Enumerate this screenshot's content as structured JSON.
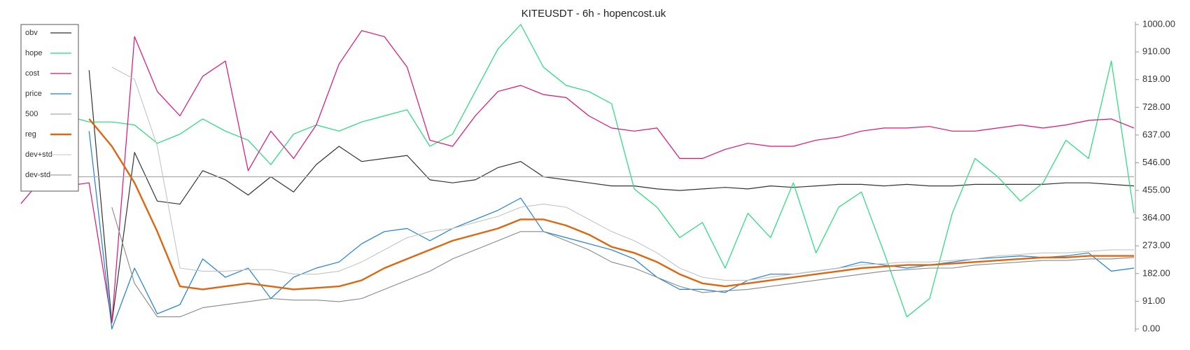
{
  "chart_data": {
    "type": "line",
    "title": "KITEUSDT - 6h - hopencost.uk",
    "ylim": [
      0,
      1000
    ],
    "yticks": [
      {
        "value": 0,
        "label": "0.00"
      },
      {
        "value": 91,
        "label": "91.00"
      },
      {
        "value": 182,
        "label": "182.00"
      },
      {
        "value": 273,
        "label": "273.00"
      },
      {
        "value": 364,
        "label": "364.00"
      },
      {
        "value": 455,
        "label": "455.00"
      },
      {
        "value": 546,
        "label": "546.00"
      },
      {
        "value": 637,
        "label": "637.00"
      },
      {
        "value": 728,
        "label": "728.00"
      },
      {
        "value": 819,
        "label": "819.00"
      },
      {
        "value": 910,
        "label": "910.00"
      },
      {
        "value": 1000,
        "label": "1000.00"
      }
    ],
    "legend": "upper left",
    "series": [
      {
        "name": "obv",
        "color": "#333333",
        "width": 1.2,
        "values": [
          null,
          null,
          null,
          850,
          20,
          580,
          420,
          410,
          520,
          490,
          440,
          500,
          450,
          540,
          600,
          550,
          560,
          570,
          490,
          480,
          490,
          530,
          550,
          500,
          490,
          480,
          470,
          470,
          460,
          455,
          460,
          465,
          460,
          470,
          465,
          470,
          475,
          475,
          470,
          475,
          470,
          470,
          475,
          475,
          475,
          475,
          480,
          480,
          475,
          470
        ]
      },
      {
        "name": "hope",
        "color": "#22dd77",
        "width": 1.2,
        "values": [
          null,
          null,
          700,
          680,
          680,
          670,
          610,
          640,
          690,
          650,
          620,
          540,
          640,
          670,
          650,
          680,
          700,
          720,
          600,
          640,
          780,
          920,
          1000,
          860,
          800,
          780,
          740,
          460,
          400,
          300,
          350,
          200,
          380,
          300,
          480,
          250,
          400,
          450,
          250,
          40,
          100,
          380,
          560,
          500,
          420,
          480,
          620,
          560,
          880,
          380
        ]
      },
      {
        "name": "cost",
        "color": "#dd1177",
        "width": 1.2,
        "values": [
          412,
          500,
          470,
          480,
          20,
          960,
          780,
          700,
          830,
          880,
          520,
          650,
          560,
          670,
          870,
          980,
          960,
          860,
          620,
          600,
          700,
          780,
          800,
          770,
          760,
          700,
          660,
          650,
          660,
          560,
          560,
          590,
          610,
          600,
          600,
          620,
          630,
          650,
          660,
          660,
          665,
          650,
          650,
          660,
          670,
          660,
          670,
          685,
          690,
          660
        ]
      },
      {
        "name": "price",
        "color": "#1f7fd6",
        "width": 1.2,
        "values": [
          null,
          null,
          null,
          650,
          0,
          200,
          50,
          80,
          230,
          170,
          200,
          100,
          170,
          200,
          220,
          280,
          320,
          330,
          290,
          330,
          360,
          390,
          430,
          320,
          300,
          280,
          260,
          230,
          170,
          130,
          130,
          120,
          160,
          180,
          180,
          190,
          200,
          220,
          210,
          200,
          210,
          220,
          230,
          235,
          240,
          235,
          240,
          250,
          190,
          200
        ]
      },
      {
        "name": "500",
        "color": "#aaaaaa",
        "width": 1.2,
        "values": [
          500,
          500,
          500,
          500,
          500,
          500,
          500,
          500,
          500,
          500,
          500,
          500,
          500,
          500,
          500,
          500,
          500,
          500,
          500,
          500,
          500,
          500,
          500,
          500,
          500,
          500,
          500,
          500,
          500,
          500,
          500,
          500,
          500,
          500,
          500,
          500,
          500,
          500,
          500,
          500,
          500,
          500,
          500,
          500,
          500,
          500,
          500,
          500,
          500,
          500
        ]
      },
      {
        "name": "reg",
        "color": "#dd6611",
        "width": 2.4,
        "values": [
          null,
          null,
          null,
          690,
          600,
          480,
          320,
          140,
          130,
          140,
          150,
          140,
          130,
          135,
          140,
          160,
          200,
          230,
          260,
          290,
          310,
          330,
          360,
          360,
          340,
          310,
          270,
          250,
          220,
          180,
          150,
          140,
          150,
          160,
          170,
          180,
          190,
          200,
          205,
          210,
          210,
          215,
          220,
          225,
          230,
          235,
          235,
          240,
          240,
          240
        ]
      },
      {
        "name": "dev+std",
        "color": "#c4c4c4",
        "width": 1.1,
        "values": [
          null,
          null,
          null,
          null,
          860,
          820,
          600,
          200,
          190,
          190,
          195,
          195,
          180,
          180,
          190,
          220,
          260,
          300,
          320,
          330,
          350,
          370,
          400,
          410,
          400,
          360,
          320,
          290,
          250,
          200,
          170,
          160,
          160,
          170,
          180,
          190,
          200,
          210,
          215,
          220,
          220,
          225,
          230,
          240,
          245,
          250,
          250,
          255,
          260,
          260
        ]
      },
      {
        "name": "dev-std",
        "color": "#888888",
        "width": 1.1,
        "values": [
          null,
          null,
          null,
          null,
          400,
          150,
          40,
          40,
          70,
          80,
          90,
          100,
          95,
          95,
          90,
          100,
          130,
          160,
          190,
          230,
          260,
          290,
          320,
          320,
          290,
          260,
          220,
          200,
          170,
          140,
          120,
          125,
          130,
          140,
          150,
          160,
          170,
          180,
          190,
          195,
          200,
          200,
          210,
          215,
          220,
          225,
          225,
          230,
          230,
          235
        ]
      }
    ]
  }
}
